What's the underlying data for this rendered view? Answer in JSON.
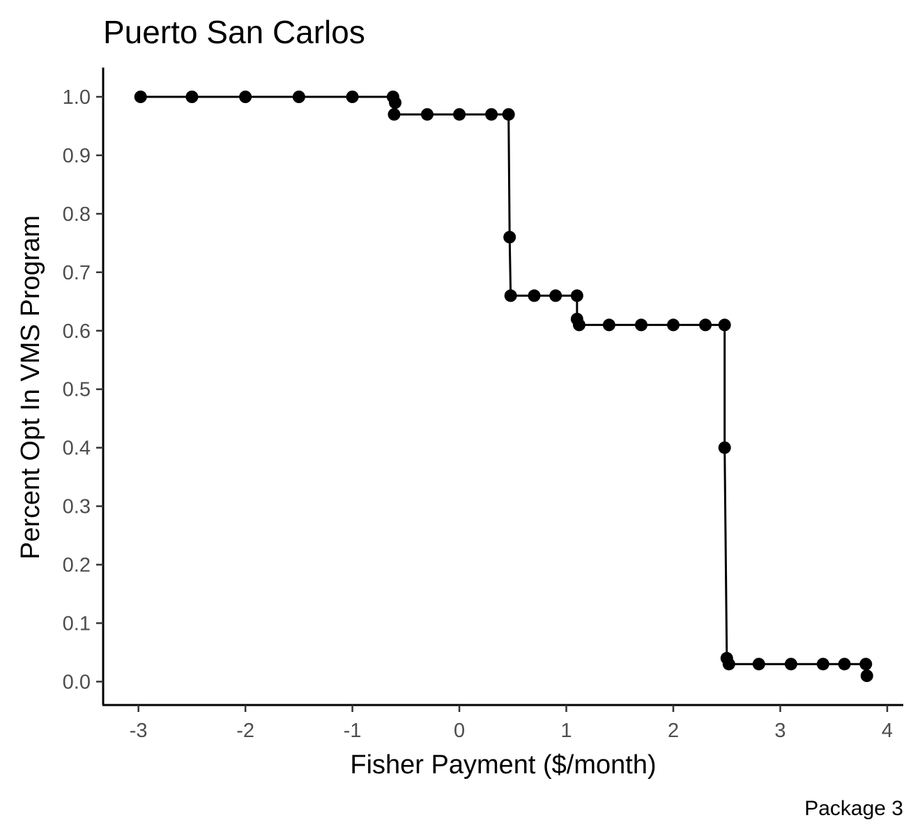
{
  "chart_data": {
    "type": "line",
    "title": "Puerto San Carlos",
    "xlabel": "Fisher Payment ($/month)",
    "ylabel": "Percent Opt In VMS Program",
    "caption": "Package 3",
    "xlim": [
      -3.33,
      4.15
    ],
    "ylim": [
      -0.04,
      1.05
    ],
    "x_ticks": [
      -3,
      -2,
      -1,
      0,
      1,
      2,
      3,
      4
    ],
    "x_tick_labels": [
      "-3",
      "-2",
      "-1",
      "0",
      "1",
      "2",
      "3",
      "4"
    ],
    "y_ticks": [
      0.0,
      0.1,
      0.2,
      0.3,
      0.4,
      0.5,
      0.6,
      0.7,
      0.8,
      0.9,
      1.0
    ],
    "y_tick_labels": [
      "0.0",
      "0.1",
      "0.2",
      "0.3",
      "0.4",
      "0.5",
      "0.6",
      "0.7",
      "0.8",
      "0.9",
      "1.0"
    ],
    "grid": false,
    "legend": "none",
    "color": "#000000",
    "series": [
      {
        "points": [
          [
            -2.98,
            1.0
          ],
          [
            -2.5,
            1.0
          ],
          [
            -2.0,
            1.0
          ],
          [
            -1.5,
            1.0
          ],
          [
            -1.0,
            1.0
          ],
          [
            -0.62,
            1.0
          ],
          [
            -0.6,
            0.99
          ],
          [
            -0.61,
            0.97
          ],
          [
            -0.3,
            0.97
          ],
          [
            0.0,
            0.97
          ],
          [
            0.3,
            0.97
          ],
          [
            0.46,
            0.97
          ],
          [
            0.47,
            0.76
          ],
          [
            0.48,
            0.66
          ],
          [
            0.7,
            0.66
          ],
          [
            0.9,
            0.66
          ],
          [
            1.1,
            0.66
          ],
          [
            1.1,
            0.62
          ],
          [
            1.12,
            0.61
          ],
          [
            1.4,
            0.61
          ],
          [
            1.7,
            0.61
          ],
          [
            2.0,
            0.61
          ],
          [
            2.3,
            0.61
          ],
          [
            2.48,
            0.61
          ],
          [
            2.48,
            0.4
          ],
          [
            2.5,
            0.04
          ],
          [
            2.52,
            0.03
          ],
          [
            2.8,
            0.03
          ],
          [
            3.1,
            0.03
          ],
          [
            3.4,
            0.03
          ],
          [
            3.6,
            0.03
          ],
          [
            3.8,
            0.03
          ],
          [
            3.81,
            0.01
          ]
        ]
      }
    ]
  }
}
